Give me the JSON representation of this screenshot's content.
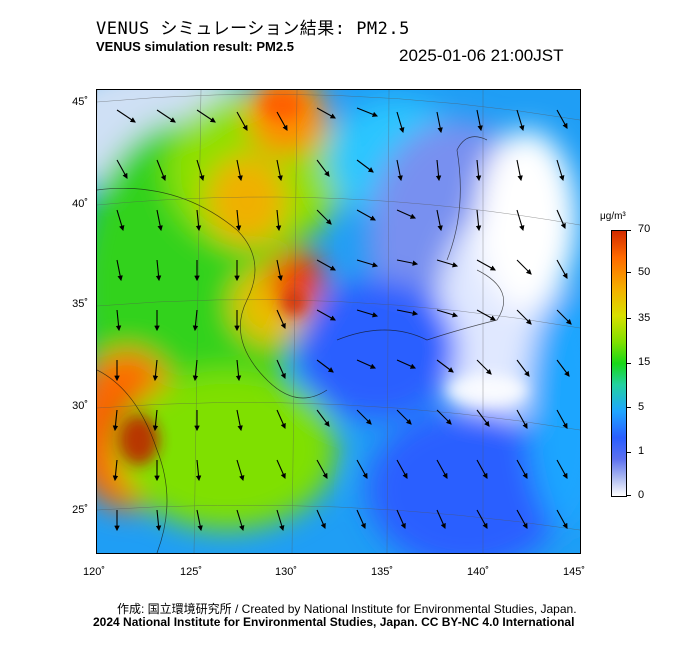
{
  "header": {
    "title_ja": "VENUS シミュレーション結果: PM2.5",
    "title_en": "VENUS simulation result: PM2.5",
    "timestamp": "2025-01-06 21:00JST"
  },
  "map": {
    "latitude_labels": [
      "45˚",
      "40˚",
      "35˚",
      "30˚",
      "25˚"
    ],
    "longitude_labels": [
      "120˚",
      "125˚",
      "130˚",
      "135˚",
      "140˚",
      "145˚"
    ],
    "field": "PM2.5 concentration with wind vectors",
    "colors": {
      "max": "#d22b00",
      "high": "#f4b000",
      "mid": "#18d818",
      "low": "#1fa6ff",
      "very_low": "#5c70f0",
      "zero": "#ffffff"
    }
  },
  "colorbar": {
    "unit": "μg/m³",
    "labels": [
      "70",
      "50",
      "35",
      "15",
      "5",
      "1",
      "0"
    ]
  },
  "footer": {
    "credit": "作成: 国立環境研究所 / Created by National Institute for Environmental Studies, Japan.",
    "license": "2024 National Institute for Environmental Studies, Japan. CC BY-NC 4.0 International"
  }
}
